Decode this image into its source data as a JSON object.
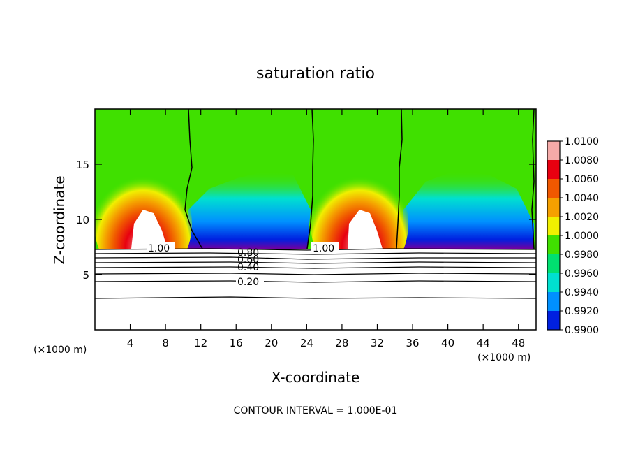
{
  "chart_data": {
    "type": "heatmap",
    "title": "saturation ratio",
    "xlabel": "X-coordinate",
    "ylabel": "Z-coordinate",
    "x_unit_label": "(×1000 m)",
    "x_unit_label_right": "(×1000 m)",
    "xlim": [
      0,
      50
    ],
    "ylim": [
      0,
      20
    ],
    "x_ticks": [
      "4",
      "8",
      "12",
      "16",
      "20",
      "24",
      "28",
      "32",
      "36",
      "40",
      "44",
      "48"
    ],
    "x_tick_values": [
      4,
      8,
      12,
      16,
      20,
      24,
      28,
      32,
      36,
      40,
      44,
      48
    ],
    "y_ticks": [
      "5",
      "10",
      "15"
    ],
    "y_tick_values": [
      5,
      10,
      15
    ],
    "colorbar": {
      "labels": [
        "1.0100",
        "1.0080",
        "1.0060",
        "1.0040",
        "1.0020",
        "1.0000",
        "0.9980",
        "0.9960",
        "0.9940",
        "0.9920",
        "0.9900"
      ],
      "min": 0.99,
      "max": 1.01,
      "colors": [
        "#f5aaa8",
        "#e80010",
        "#f05800",
        "#f5a000",
        "#f0f000",
        "#40e000",
        "#00e070",
        "#00e0d0",
        "#0090ff",
        "#0020e0",
        "#7000a0"
      ]
    },
    "contour_labels": [
      "1.00",
      "1.00",
      "0.80",
      "0.60",
      "0.40",
      "0.20"
    ],
    "contour_levels": [
      1.0,
      0.8,
      0.6,
      0.4,
      0.2
    ],
    "footer": "CONTOUR INTERVAL = 1.000E-01"
  }
}
